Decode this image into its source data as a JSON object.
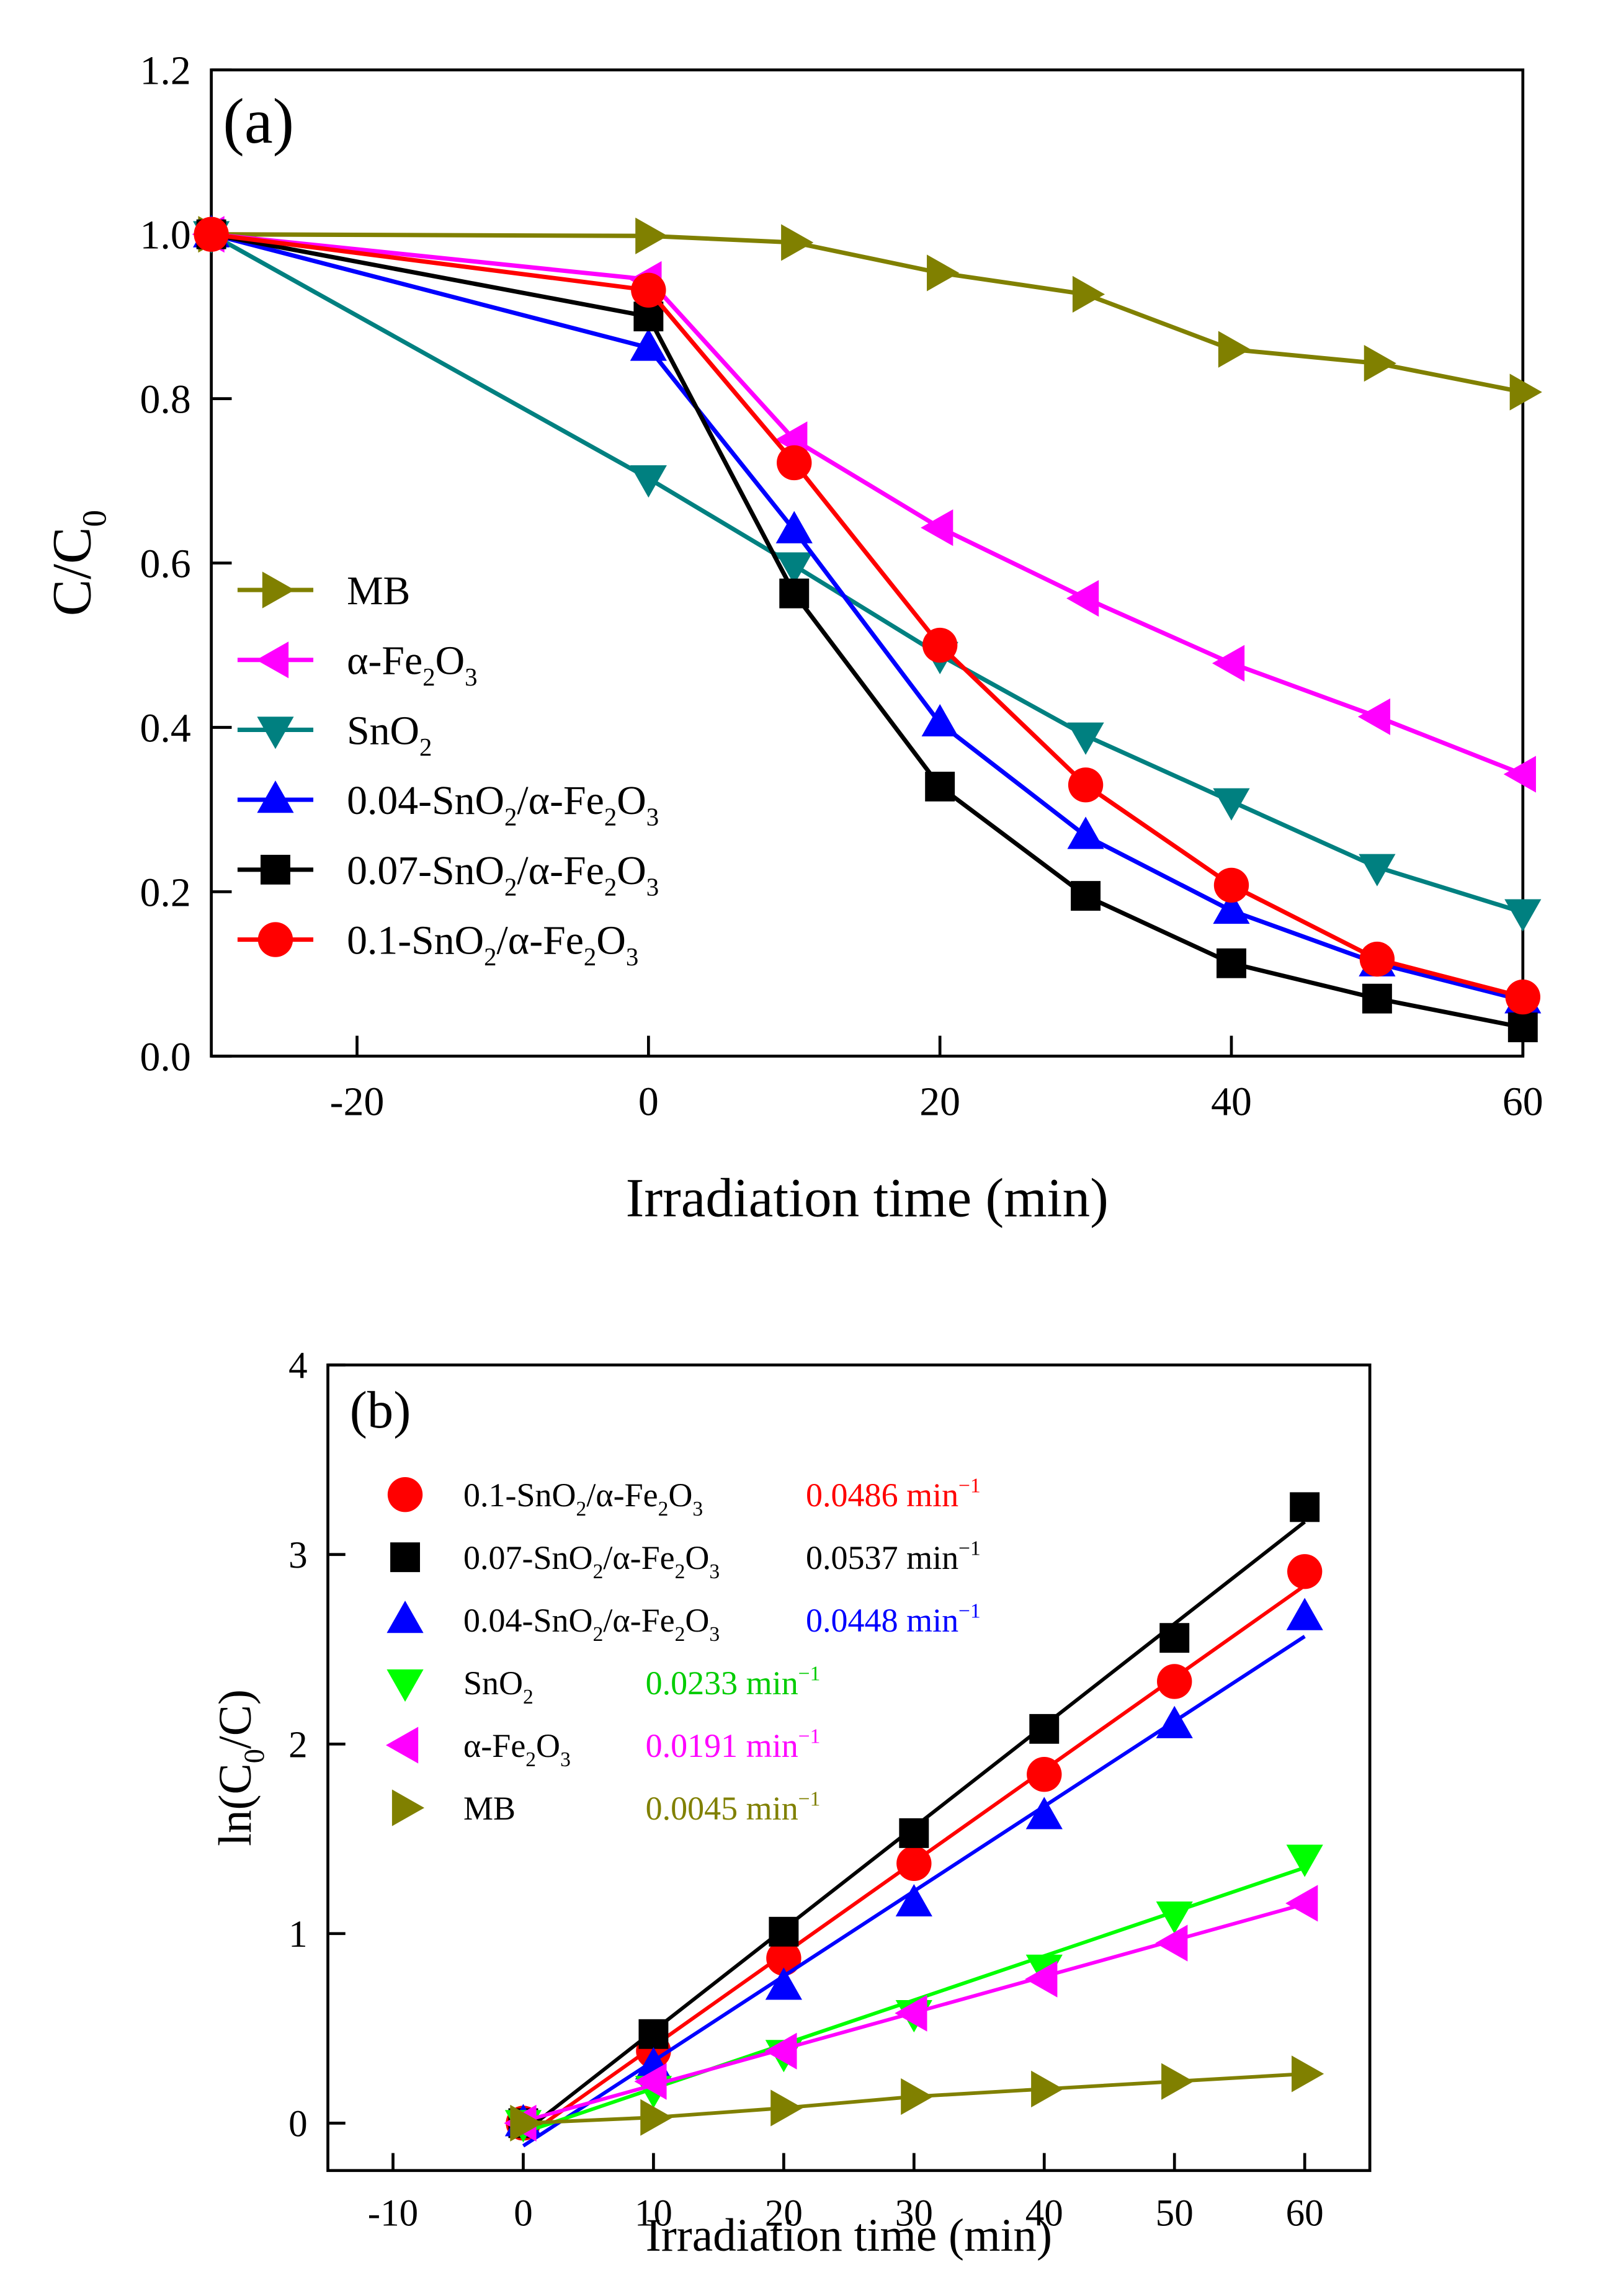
{
  "chart_data": [
    {
      "type": "line",
      "panel_label": "(a)",
      "xlabel": "Irradiation time (min)",
      "ylabel": {
        "base": "C/C",
        "sub": "0"
      },
      "xlim": [
        -30,
        60
      ],
      "ylim": [
        0.0,
        1.2
      ],
      "xticks": [
        -20,
        0,
        20,
        40,
        60
      ],
      "yticks": [
        0.0,
        0.2,
        0.4,
        0.6,
        0.8,
        1.0,
        1.2
      ],
      "ytick_labels": [
        "0.0",
        "0.2",
        "0.4",
        "0.6",
        "0.8",
        "1.0",
        "1.2"
      ],
      "legend_position": "left",
      "grid": false,
      "x": [
        -30,
        0,
        10,
        20,
        30,
        40,
        50,
        60
      ],
      "series": [
        {
          "name": "MB",
          "legend": [
            [
              "MB",
              ""
            ]
          ],
          "color": "#808000",
          "marker": "triangle-right",
          "values": [
            1.0,
            0.998,
            0.99,
            0.953,
            0.927,
            0.86,
            0.843,
            0.808
          ]
        },
        {
          "name": "α-Fe2O3",
          "legend": [
            [
              "α-Fe",
              ""
            ],
            [
              "2",
              "sub"
            ],
            [
              "O",
              ""
            ],
            [
              "3",
              "sub"
            ]
          ],
          "color": "#ff00ff",
          "marker": "triangle-left",
          "values": [
            1.0,
            0.945,
            0.75,
            0.643,
            0.557,
            0.478,
            0.413,
            0.343
          ]
        },
        {
          "name": "SnO2",
          "legend": [
            [
              "SnO",
              ""
            ],
            [
              "2",
              "sub"
            ]
          ],
          "color": "#008080",
          "marker": "triangle-down",
          "values": [
            1.0,
            0.703,
            0.597,
            0.488,
            0.39,
            0.31,
            0.23,
            0.175
          ]
        },
        {
          "name": "0.04-SnO2/α-Fe2O3",
          "legend": [
            [
              "0.04-SnO",
              ""
            ],
            [
              "2",
              "sub"
            ],
            [
              "/α-Fe",
              ""
            ],
            [
              "2",
              "sub"
            ],
            [
              "O",
              ""
            ],
            [
              "3",
              "sub"
            ]
          ],
          "color": "#0000ff",
          "marker": "triangle-up",
          "values": [
            1.0,
            0.862,
            0.64,
            0.405,
            0.268,
            0.177,
            0.113,
            0.068
          ]
        },
        {
          "name": "0.07-SnO2/α-Fe2O3",
          "legend": [
            [
              "0.07-SnO",
              ""
            ],
            [
              "2",
              "sub"
            ],
            [
              "/α-Fe",
              ""
            ],
            [
              "2",
              "sub"
            ],
            [
              "O",
              ""
            ],
            [
              "3",
              "sub"
            ]
          ],
          "color": "#000000",
          "marker": "square",
          "values": [
            1.0,
            0.9,
            0.563,
            0.328,
            0.195,
            0.113,
            0.07,
            0.035
          ]
        },
        {
          "name": "0.1-SnO2/α-Fe2O3",
          "legend": [
            [
              "0.1-SnO",
              ""
            ],
            [
              "2",
              "sub"
            ],
            [
              "/α-Fe",
              ""
            ],
            [
              "2",
              "sub"
            ],
            [
              "O",
              ""
            ],
            [
              "3",
              "sub"
            ]
          ],
          "color": "#ff0000",
          "marker": "circle",
          "values": [
            1.0,
            0.932,
            0.722,
            0.5,
            0.33,
            0.208,
            0.118,
            0.072
          ]
        }
      ]
    },
    {
      "type": "scatter",
      "panel_label": "(b)",
      "xlabel": "Irradiation time (min)",
      "ylabel": [
        [
          "ln(C",
          ""
        ],
        [
          "0",
          "sub"
        ],
        [
          "/C)",
          ""
        ]
      ],
      "xlim": [
        -15,
        65
      ],
      "ylim": [
        -0.25,
        4
      ],
      "xticks": [
        -10,
        0,
        10,
        20,
        30,
        40,
        50,
        60
      ],
      "yticks": [
        0,
        1,
        2,
        3,
        4
      ],
      "ytick_labels": [
        "0",
        "1",
        "2",
        "3",
        "4"
      ],
      "legend_position": "top-left",
      "grid": false,
      "x": [
        0,
        10,
        20,
        30,
        40,
        50,
        60
      ],
      "series": [
        {
          "name": "0.1-SnO2/α-Fe2O3",
          "legend": [
            [
              "0.1-SnO",
              ""
            ],
            [
              "2",
              "sub"
            ],
            [
              "/α-Fe",
              ""
            ],
            [
              "2",
              "sub"
            ],
            [
              "O",
              ""
            ],
            [
              "3",
              "sub"
            ]
          ],
          "color": "#ff0000",
          "marker": "circle",
          "rate_label": [
            [
              "0.0486 min",
              ""
            ],
            [
              "−1",
              "sup"
            ]
          ],
          "rate_color": "#ff0000",
          "values": [
            0.0,
            0.38,
            0.87,
            1.37,
            1.84,
            2.33,
            2.91
          ],
          "fit": {
            "slope": 0.0486,
            "intercept": -0.08
          }
        },
        {
          "name": "0.07-SnO2/α-Fe2O3",
          "legend": [
            [
              "0.07-SnO",
              ""
            ],
            [
              "2",
              "sub"
            ],
            [
              "/α-Fe",
              ""
            ],
            [
              "2",
              "sub"
            ],
            [
              "O",
              ""
            ],
            [
              "3",
              "sub"
            ]
          ],
          "color": "#000000",
          "marker": "square",
          "rate_label": [
            [
              "0.0537 min",
              ""
            ],
            [
              "−1",
              "sup"
            ]
          ],
          "rate_color": "#000000",
          "values": [
            0.0,
            0.47,
            1.01,
            1.53,
            2.08,
            2.56,
            3.25
          ],
          "fit": {
            "slope": 0.0537,
            "intercept": -0.05
          }
        },
        {
          "name": "0.04-SnO2/α-Fe2O3",
          "legend": [
            [
              "0.04-SnO",
              ""
            ],
            [
              "2",
              "sub"
            ],
            [
              "/α-Fe",
              ""
            ],
            [
              "2",
              "sub"
            ],
            [
              "O",
              ""
            ],
            [
              "3",
              "sub"
            ]
          ],
          "color": "#0000ff",
          "marker": "triangle-up",
          "rate_label": [
            [
              "0.0448 min",
              ""
            ],
            [
              "−1",
              "sup"
            ]
          ],
          "rate_color": "#0000ff",
          "values": [
            0.0,
            0.3,
            0.72,
            1.16,
            1.62,
            2.1,
            2.67
          ],
          "fit": {
            "slope": 0.0448,
            "intercept": -0.12
          }
        },
        {
          "name": "SnO2",
          "legend": [
            [
              "SnO",
              ""
            ],
            [
              "2",
              "sub"
            ]
          ],
          "color": "#00ff00",
          "marker": "triangle-down",
          "rate_label": [
            [
              "0.0233 min",
              ""
            ],
            [
              "−1",
              "sup"
            ]
          ],
          "rate_color": "#00cc00",
          "values": [
            0.0,
            0.18,
            0.37,
            0.58,
            0.82,
            1.1,
            1.4
          ],
          "fit": {
            "slope": 0.0233,
            "intercept": -0.05
          }
        },
        {
          "name": "α-Fe2O3",
          "legend": [
            [
              "α-Fe",
              ""
            ],
            [
              "2",
              "sub"
            ],
            [
              "O",
              ""
            ],
            [
              "3",
              "sub"
            ]
          ],
          "color": "#ff00ff",
          "marker": "triangle-left",
          "rate_label": [
            [
              "0.0191 min",
              ""
            ],
            [
              "−1",
              "sup"
            ]
          ],
          "rate_color": "#ff00ff",
          "values": [
            0.0,
            0.22,
            0.38,
            0.58,
            0.76,
            0.95,
            1.16
          ],
          "fit": {
            "slope": 0.0191,
            "intercept": 0.01
          }
        },
        {
          "name": "MB",
          "legend": [
            [
              "MB",
              ""
            ]
          ],
          "color": "#808000",
          "marker": "triangle-right",
          "rate_label": [
            [
              "0.0045 min",
              ""
            ],
            [
              "−1",
              "sup"
            ]
          ],
          "rate_color": "#808000",
          "values": [
            0.0,
            0.03,
            0.08,
            0.14,
            0.18,
            0.22,
            0.26
          ],
          "fit": null,
          "connect": true
        }
      ]
    }
  ]
}
